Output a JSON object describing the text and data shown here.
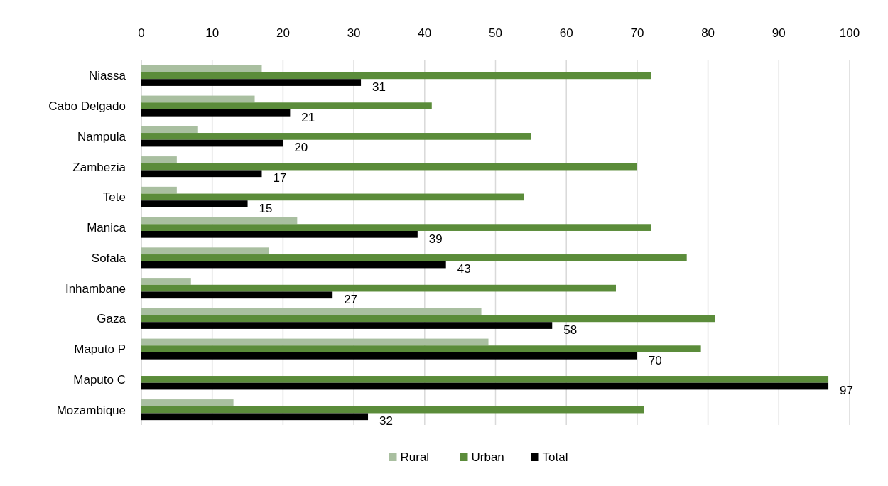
{
  "chart_data": {
    "type": "bar",
    "orientation": "horizontal",
    "categories": [
      "Niassa",
      "Cabo Delgado",
      "Nampula",
      "Zambezia",
      "Tete",
      "Manica",
      "Sofala",
      "Inhambane",
      "Gaza",
      "Maputo P",
      "Maputo C",
      "Mozambique"
    ],
    "series": [
      {
        "name": "Rural",
        "color": "#a9bfa0",
        "values": [
          17,
          16,
          8,
          5,
          5,
          22,
          18,
          7,
          48,
          49,
          null,
          13
        ]
      },
      {
        "name": "Urban",
        "color": "#5b8c3a",
        "values": [
          72,
          41,
          55,
          70,
          54,
          72,
          77,
          67,
          81,
          79,
          97,
          71
        ]
      },
      {
        "name": "Total",
        "color": "#000000",
        "values": [
          31,
          21,
          20,
          17,
          15,
          39,
          43,
          27,
          58,
          70,
          97,
          32
        ],
        "value_labels": [
          "31",
          "21",
          "20",
          "17",
          "15",
          "39",
          "43",
          "27",
          "58",
          "70",
          "97",
          "32"
        ]
      }
    ],
    "xlim": [
      0,
      100
    ],
    "xticks": [
      0,
      10,
      20,
      30,
      40,
      50,
      60,
      70,
      80,
      90,
      100
    ],
    "grid": "x",
    "legend": "bottom"
  }
}
